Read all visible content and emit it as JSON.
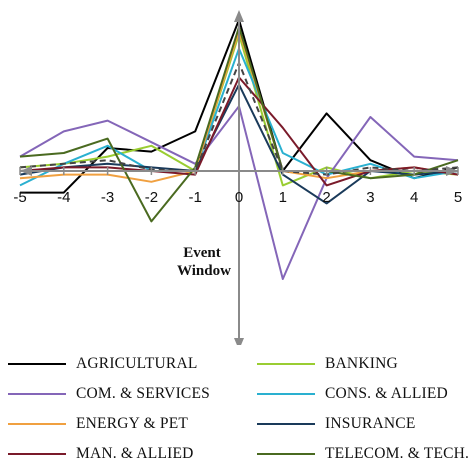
{
  "chart_data": {
    "type": "line",
    "x": [
      -5,
      -4,
      -3,
      -2,
      -1,
      0,
      1,
      2,
      3,
      4,
      5
    ],
    "xlim": [
      -5,
      5
    ],
    "ylim": [
      -2.0,
      2.4
    ],
    "grid": false,
    "annotation": [
      "Event",
      "Window"
    ],
    "legend_position": "bottom",
    "series": [
      {
        "name": "AGRICULTURAL",
        "color": "#000000",
        "dashed": false,
        "values": [
          -0.3,
          -0.3,
          0.32,
          0.27,
          0.55,
          2.1,
          0.0,
          0.8,
          0.15,
          -0.1,
          0.05
        ]
      },
      {
        "name": "BANKING",
        "color": "#9acd32",
        "dashed": false,
        "values": [
          0.05,
          0.1,
          0.2,
          0.35,
          0.0,
          1.9,
          -0.2,
          0.05,
          -0.1,
          0.0,
          -0.05
        ]
      },
      {
        "name": "COM. & SERVICES",
        "color": "#8466b8",
        "dashed": false,
        "values": [
          0.2,
          0.55,
          0.7,
          0.4,
          0.1,
          0.9,
          -1.5,
          -0.1,
          0.75,
          0.2,
          0.15
        ]
      },
      {
        "name": "CONS. & ALLIED",
        "color": "#2ab0d0",
        "dashed": false,
        "values": [
          -0.2,
          0.1,
          0.35,
          0.0,
          0.0,
          1.7,
          0.25,
          -0.05,
          0.1,
          -0.1,
          0.0
        ]
      },
      {
        "name": "ENERGY & PET",
        "color": "#f0a040",
        "dashed": false,
        "values": [
          -0.1,
          -0.05,
          -0.05,
          -0.15,
          0.0,
          1.95,
          0.0,
          -0.1,
          0.0,
          0.05,
          -0.05
        ]
      },
      {
        "name": "INSURANCE",
        "color": "#1a3a5a",
        "dashed": false,
        "values": [
          -0.05,
          0.05,
          0.1,
          0.05,
          0.0,
          1.2,
          -0.05,
          -0.45,
          0.0,
          -0.05,
          0.0
        ]
      },
      {
        "name": "MAN. & ALLIED",
        "color": "#7a1a2a",
        "dashed": false,
        "values": [
          0.0,
          0.05,
          0.05,
          0.0,
          -0.05,
          1.3,
          0.6,
          -0.2,
          0.0,
          0.05,
          -0.05
        ]
      },
      {
        "name": "TELECOM. & TECH.",
        "color": "#4a6a20",
        "dashed": false,
        "values": [
          0.2,
          0.25,
          0.45,
          -0.7,
          0.05,
          2.0,
          0.0,
          0.0,
          -0.1,
          -0.05,
          0.15
        ]
      },
      {
        "name": "",
        "color": "#444444",
        "dashed": true,
        "values": [
          0.05,
          0.1,
          0.15,
          0.02,
          0.0,
          1.5,
          0.0,
          -0.05,
          0.05,
          0.0,
          0.05
        ]
      }
    ]
  }
}
